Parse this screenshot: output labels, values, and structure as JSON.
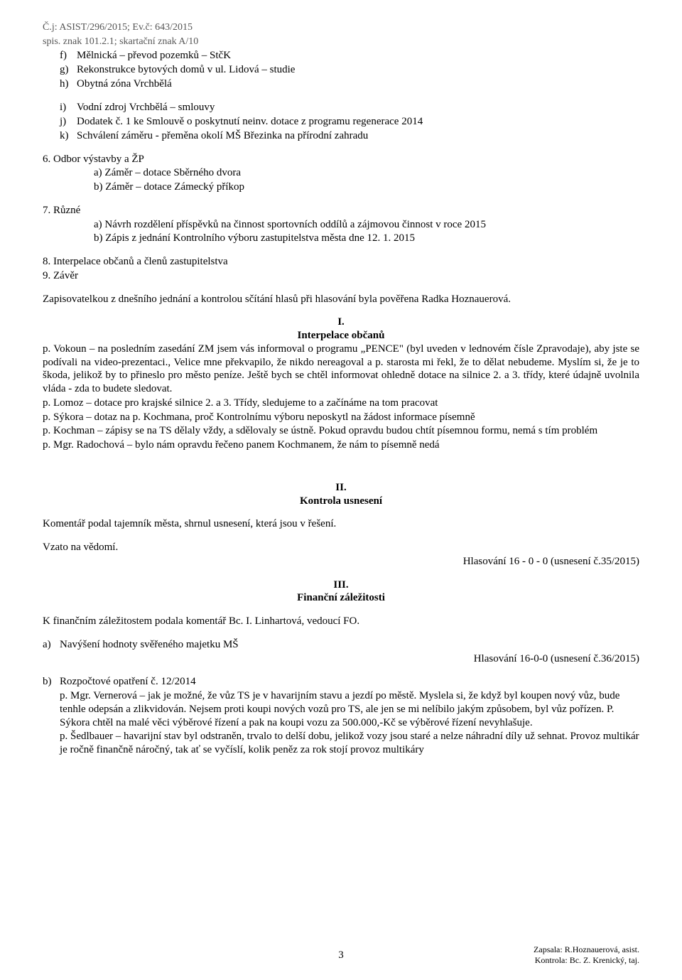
{
  "hdr": {
    "l1": "Č.j: ASIST/296/2015; Ev.č: 643/2015",
    "l2": "spis. znak 101.2.1; skartační znak A/10"
  },
  "lf": "f)",
  "tf": "Mělnická – převod pozemků – StčK",
  "lg": "g)",
  "tg": "Rekonstrukce bytových domů v ul. Lidová – studie",
  "lh": "h)",
  "th": "Obytná zóna Vrchbělá",
  "li": "i)",
  "ti": "Vodní zdroj Vrchbělá – smlouvy",
  "lj": "j)",
  "tj": "Dodatek č. 1 ke Smlouvě o poskytnutí neinv. dotace z programu regenerace 2014",
  "lk": "k)",
  "tk": "Schválení záměru  - přeměna okolí MŠ Březinka na přírodní zahradu",
  "s6": "6. Odbor výstavby a ŽP",
  "s6a": "a) Záměr – dotace Sběrného dvora",
  "s6b": "b) Záměr – dotace Zámecký příkop",
  "s7": "7. Různé",
  "s7a": "a) Návrh rozdělení příspěvků na činnost sportovních oddílů a zájmovou činnost v roce 2015",
  "s7b": "b) Zápis z jednání Kontrolního výboru zastupitelstva města dne 12. 1. 2015",
  "s8": "8. Interpelace občanů a členů zastupitelstva",
  "s9": "9. Závěr",
  "zap": "Zapisovatelkou z dnešního jednání a kontrolou sčítání hlasů při hlasování byla pověřena Radka Hoznauerová.",
  "h1n": "I.",
  "h1t": "Interpelace občanů",
  "p1": "p. Vokoun – na posledním zasedání ZM jsem vás informoval o programu „PENCE\" (byl uveden v lednovém čísle Zpravodaje), aby jste se podívali na video-prezentaci., Velice mne překvapilo, že nikdo nereagoval  a p. starosta mi řekl, že to dělat nebudeme. Myslím si, že je to škoda, jelikož by to přineslo pro město peníze. Ještě bych se chtěl informovat ohledně dotace na silnice 2. a 3. třídy, které údajně uvolnila vláda - zda to budete sledovat.",
  "p2": "p. Lomoz – dotace pro krajské silnice 2. a 3. Třídy, sledujeme to a začínáme na tom pracovat",
  "p3": "p. Sýkora – dotaz na p. Kochmana, proč Kontrolnímu výboru neposkytl na žádost informace písemně",
  "p4": "p. Kochman – zápisy se na TS dělaly vždy, a sdělovaly se ústně. Pokud opravdu budou chtít písemnou formu, nemá s tím problém",
  "p5": "p. Mgr. Radochová – bylo nám opravdu řečeno panem Kochmanem, že nám to písemně nedá",
  "h2n": "II.",
  "h2t": "Kontrola usnesení",
  "k1": "Komentář podal tajemník města, shrnul usnesení, která jsou v řešení.",
  "k2": "Vzato na vědomí.",
  "v1": "Hlasování  16 - 0 - 0 (usnesení č.35/2015)",
  "h3n": "III.",
  "h3t": "Finanční záležitosti",
  "f1": "K finančním záležitostem podala komentář Bc. I. Linhartová, vedoucí FO.",
  "la": "a)",
  "fa": "Navýšení hodnoty svěřeného majetku MŠ",
  "v2": "Hlasování  16-0-0 (usnesení č.36/2015)",
  "lb": "b)",
  "fb": "Rozpočtové opatření č. 12/2014",
  "fb1": "p. Mgr. Vernerová – jak je možné, že vůz TS je v havarijním stavu a jezdí po městě. Myslela si, že když byl koupen nový vůz, bude tenhle odepsán a zlikvidován. Nejsem proti koupi nových vozů pro TS, ale jen se mi nelíbilo jakým způsobem, byl vůz pořízen. P. Sýkora chtěl na malé věci výběrové řízení a pak na koupi vozu za 500.000,-Kč se výběrové řízení nevyhlašuje.",
  "fb2": "p. Šedlbauer – havarijní stav byl odstraněn, trvalo to delší dobu, jelikož vozy jsou staré a nelze náhradní díly už sehnat. Provoz multikár je ročně finančně náročný, tak ať se vyčíslí, kolik peněz za rok stojí provoz multikáry",
  "pg": "3",
  "fr1": "Zapsala: R.Hoznauerová, asist.",
  "fr2": "Kontrola: Bc. Z. Krenický, taj."
}
